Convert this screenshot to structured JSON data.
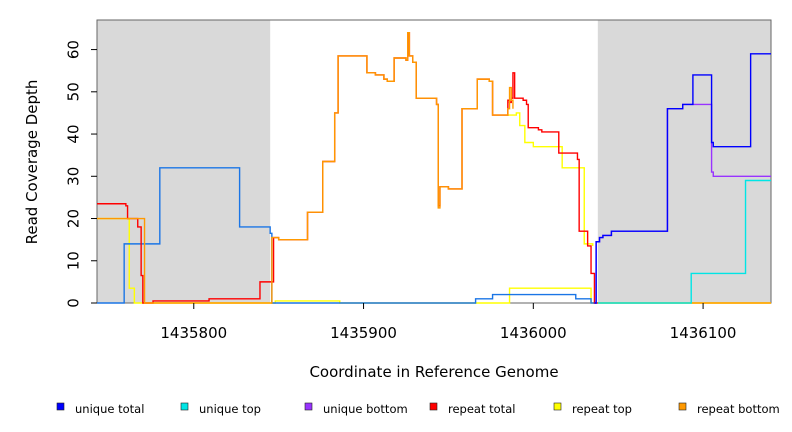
{
  "chart_data": {
    "type": "line",
    "title": "",
    "xlabel": "Coordinate in Reference Genome",
    "ylabel": "Read Coverage Depth",
    "xlim": [
      1435743,
      1436140
    ],
    "ylim": [
      0,
      67
    ],
    "xticks": [
      1435800,
      1435900,
      1436000,
      1436100
    ],
    "yticks": [
      0,
      10,
      20,
      30,
      40,
      50,
      60
    ],
    "grid": false,
    "legend_position": "bottom",
    "shaded_regions": [
      {
        "x0": 1435743,
        "x1": 1435845,
        "color": "#d9d9d9"
      },
      {
        "x0": 1436038,
        "x1": 1436140,
        "color": "#d9d9d9"
      }
    ],
    "series": [
      {
        "name": "repeat top",
        "color": "#ffff00",
        "style": "step",
        "points": [
          [
            1435743,
            20
          ],
          [
            1435760,
            20
          ],
          [
            1435762,
            3.5
          ],
          [
            1435765,
            0
          ],
          [
            1435780,
            0
          ],
          [
            1435845,
            0
          ],
          [
            1435848,
            0.5
          ],
          [
            1435885,
            0.5
          ],
          [
            1435886,
            0
          ],
          [
            1435985,
            0
          ],
          [
            1435986,
            3.5
          ],
          [
            1436030,
            3.5
          ],
          [
            1436033,
            3.5
          ],
          [
            1436034,
            0
          ],
          [
            1436140,
            0
          ]
        ]
      },
      {
        "name": "repeat top",
        "color": "#ffff00",
        "style": "step",
        "points": [
          [
            1435985,
            44.5
          ],
          [
            1435990,
            45
          ],
          [
            1435992,
            42
          ],
          [
            1435995,
            38
          ],
          [
            1436000,
            37
          ],
          [
            1436010,
            37
          ],
          [
            1436017,
            32
          ],
          [
            1436028,
            32
          ],
          [
            1436030,
            14
          ],
          [
            1436035,
            13.5
          ]
        ]
      },
      {
        "name": "unique total",
        "color": "#1a75e6",
        "style": "step",
        "points": [
          [
            1435743,
            0
          ],
          [
            1435758,
            0
          ],
          [
            1435759,
            14
          ],
          [
            1435779,
            14
          ],
          [
            1435780,
            32
          ],
          [
            1435826,
            32
          ],
          [
            1435827,
            18
          ],
          [
            1435844,
            18
          ],
          [
            1435845,
            16.5
          ],
          [
            1435846,
            0
          ],
          [
            1435965,
            0
          ],
          [
            1435966,
            1
          ],
          [
            1435975,
            1
          ],
          [
            1435976,
            2
          ],
          [
            1436024,
            2
          ],
          [
            1436025,
            1
          ],
          [
            1436033,
            1
          ],
          [
            1436034,
            0
          ],
          [
            1436037,
            0
          ]
        ]
      },
      {
        "name": "repeat total",
        "color": "#ff0000",
        "style": "step",
        "points": [
          [
            1435743,
            23.5
          ],
          [
            1435759,
            23.5
          ],
          [
            1435760,
            23
          ],
          [
            1435761,
            20
          ],
          [
            1435766,
            20
          ],
          [
            1435767,
            18
          ],
          [
            1435769,
            6.5
          ],
          [
            1435770,
            0
          ],
          [
            1435775,
            0
          ],
          [
            1435776,
            0.5
          ],
          [
            1435808,
            0.5
          ],
          [
            1435809,
            1
          ],
          [
            1435838,
            1
          ],
          [
            1435839,
            5
          ],
          [
            1435846,
            5
          ],
          [
            1435847,
            15.5
          ],
          [
            1435850,
            15
          ],
          [
            1435866,
            15
          ],
          [
            1435867,
            21.5
          ],
          [
            1435875,
            21.5
          ],
          [
            1435876,
            33.5
          ],
          [
            1435882,
            33.5
          ],
          [
            1435883,
            45
          ],
          [
            1435885,
            58.5
          ],
          [
            1435900,
            58.5
          ],
          [
            1435902,
            54.5
          ],
          [
            1435907,
            54
          ],
          [
            1435912,
            53
          ],
          [
            1435914,
            52.5
          ],
          [
            1435916,
            52.5
          ],
          [
            1435918,
            58
          ],
          [
            1435925,
            57.5
          ],
          [
            1435926,
            64
          ],
          [
            1435927,
            58.5
          ],
          [
            1435929,
            57
          ],
          [
            1435931,
            48.5
          ],
          [
            1435942,
            48.5
          ],
          [
            1435943,
            47
          ],
          [
            1435944,
            23
          ],
          [
            1435945,
            27.5
          ],
          [
            1435950,
            27
          ],
          [
            1435957,
            27
          ],
          [
            1435958,
            46
          ],
          [
            1435966,
            46
          ],
          [
            1435967,
            53
          ],
          [
            1435974,
            52.5
          ],
          [
            1435976,
            44.5
          ],
          [
            1435984,
            44.5
          ],
          [
            1435985,
            48
          ],
          [
            1435986,
            47.5
          ],
          [
            1435987,
            48.5
          ],
          [
            1435988,
            54.5
          ],
          [
            1435989,
            48.5
          ],
          [
            1435994,
            48
          ],
          [
            1435996,
            47
          ],
          [
            1435997,
            41.5
          ],
          [
            1436003,
            41
          ],
          [
            1436005,
            40.5
          ],
          [
            1436014,
            40.5
          ],
          [
            1436015,
            35.5
          ],
          [
            1436025,
            35.5
          ],
          [
            1436026,
            34
          ],
          [
            1436027,
            17
          ],
          [
            1436030,
            17
          ],
          [
            1436032,
            13.5
          ],
          [
            1436034,
            7
          ],
          [
            1436036,
            0
          ],
          [
            1436038,
            0
          ]
        ]
      },
      {
        "name": "repeat bottom",
        "color": "#ff9900",
        "style": "step",
        "points": [
          [
            1435743,
            20
          ],
          [
            1435758,
            20
          ],
          [
            1435760,
            20
          ],
          [
            1435762,
            20
          ],
          [
            1435770,
            20
          ],
          [
            1435771,
            0
          ],
          [
            1435843,
            0
          ],
          [
            1435845,
            0
          ],
          [
            1435846,
            15.5
          ],
          [
            1435850,
            15
          ],
          [
            1435866,
            15
          ],
          [
            1435867,
            21.5
          ],
          [
            1435875,
            21.5
          ],
          [
            1435876,
            33.5
          ],
          [
            1435882,
            33.5
          ],
          [
            1435883,
            45
          ],
          [
            1435885,
            58.5
          ],
          [
            1435900,
            58.5
          ],
          [
            1435902,
            54.5
          ],
          [
            1435907,
            54
          ],
          [
            1435912,
            53
          ],
          [
            1435914,
            52.5
          ],
          [
            1435916,
            52.5
          ],
          [
            1435918,
            58
          ],
          [
            1435925,
            57.5
          ],
          [
            1435926,
            64
          ],
          [
            1435927,
            58.5
          ],
          [
            1435929,
            57
          ],
          [
            1435931,
            48.5
          ],
          [
            1435942,
            48.5
          ],
          [
            1435943,
            47
          ],
          [
            1435944,
            22.5
          ],
          [
            1435945,
            27.5
          ],
          [
            1435950,
            27
          ],
          [
            1435957,
            27
          ],
          [
            1435958,
            46
          ],
          [
            1435966,
            46
          ],
          [
            1435967,
            53
          ],
          [
            1435974,
            52.5
          ],
          [
            1435976,
            44.5
          ],
          [
            1435984,
            44.5
          ],
          [
            1435985,
            46
          ],
          [
            1435986,
            51
          ],
          [
            1435987,
            48
          ],
          [
            1435988,
            46
          ]
        ]
      },
      {
        "name": "repeat bottom",
        "color": "#ff9900",
        "style": "step",
        "points": [
          [
            1436038,
            0
          ],
          [
            1436140,
            0
          ]
        ]
      },
      {
        "name": "unique top",
        "color": "#00e5e5",
        "style": "step",
        "points": [
          [
            1436038,
            0
          ],
          [
            1436092,
            0
          ],
          [
            1436093,
            7
          ],
          [
            1436124,
            7
          ],
          [
            1436125,
            29
          ],
          [
            1436140,
            29
          ]
        ]
      },
      {
        "name": "unique bottom",
        "color": "#9933ff",
        "style": "step",
        "points": [
          [
            1436036,
            0
          ],
          [
            1436037,
            14.5
          ],
          [
            1436039,
            15.5
          ],
          [
            1436041,
            16
          ],
          [
            1436045,
            16
          ],
          [
            1436046,
            17
          ],
          [
            1436078,
            17
          ],
          [
            1436079,
            46
          ],
          [
            1436087,
            46
          ],
          [
            1436088,
            47
          ],
          [
            1436094,
            47
          ],
          [
            1436095,
            47
          ],
          [
            1436104,
            47
          ],
          [
            1436105,
            31
          ],
          [
            1436106,
            30
          ],
          [
            1436140,
            30
          ]
        ]
      },
      {
        "name": "unique total",
        "color": "#0000ff",
        "style": "step",
        "points": [
          [
            1436036,
            0
          ],
          [
            1436037,
            14.5
          ],
          [
            1436039,
            15.5
          ],
          [
            1436041,
            16
          ],
          [
            1436045,
            16
          ],
          [
            1436046,
            17
          ],
          [
            1436078,
            17
          ],
          [
            1436079,
            46
          ],
          [
            1436087,
            46
          ],
          [
            1436088,
            47
          ],
          [
            1436093,
            47
          ],
          [
            1436094,
            54
          ],
          [
            1436104,
            54
          ],
          [
            1436105,
            38
          ],
          [
            1436106,
            37
          ],
          [
            1436127,
            37
          ],
          [
            1436128,
            59
          ],
          [
            1436140,
            59
          ]
        ]
      }
    ],
    "legend": [
      {
        "label": "unique total",
        "color": "#0000ff"
      },
      {
        "label": "unique top",
        "color": "#00e5e5"
      },
      {
        "label": "unique bottom",
        "color": "#9933ff"
      },
      {
        "label": "repeat total",
        "color": "#ff0000"
      },
      {
        "label": "repeat top",
        "color": "#ffff00"
      },
      {
        "label": "repeat bottom",
        "color": "#ff9900"
      }
    ]
  }
}
